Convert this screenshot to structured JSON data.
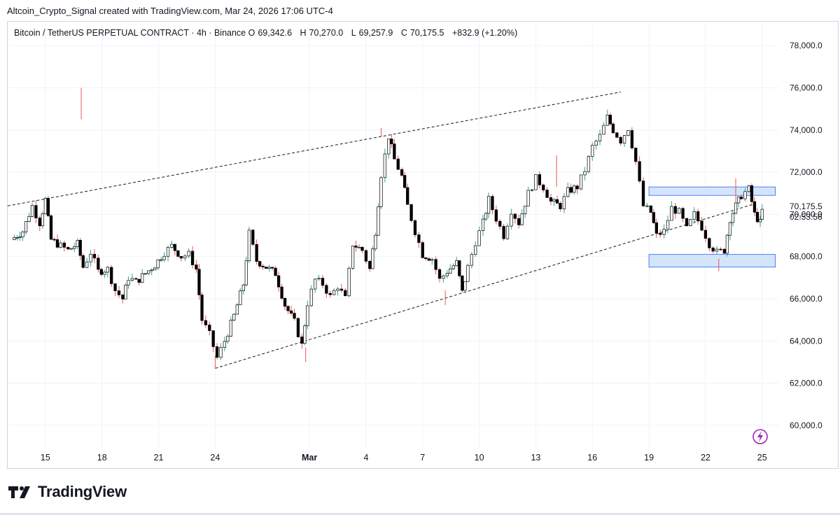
{
  "caption": "Altcoin_Crypto_Signal created with TradingView.com, Mar 24, 2026 17:06 UTC-4",
  "legend": {
    "symbol": "Bitcoin / TetherUS PERPETUAL CONTRACT · 4h · Binance",
    "o_label": "O",
    "o_value": "69,342.6",
    "h_label": "H",
    "h_value": "70,270.0",
    "l_label": "L",
    "l_value": "69,257.9",
    "c_label": "C",
    "c_value": "70,175.5",
    "change": "+832.9 (+1.20%)"
  },
  "price_tag": {
    "price": "70,175.5",
    "countdown": "02:53:56"
  },
  "brand": {
    "name": "TradingView"
  },
  "colors": {
    "up": "#ffffff",
    "down": "#000000",
    "zone_fill": "#cfe2fb",
    "zone_stroke": "#2962ff",
    "wick_up": "#26a69a",
    "wick_down": "#ef5350",
    "bolt": "#9c27b0"
  },
  "chart_data": {
    "type": "candlestick",
    "timeframe": "4h",
    "y_axis": {
      "ticks": [
        "78,000.0",
        "76,000.0",
        "74,000.0",
        "72,000.0",
        "70,000.0",
        "68,000.0",
        "66,000.0",
        "64,000.0",
        "62,000.0",
        "60,000.0"
      ],
      "tick_values": [
        78000,
        76000,
        74000,
        72000,
        70000,
        68000,
        66000,
        64000,
        62000,
        60000
      ],
      "range": [
        59000,
        79100
      ]
    },
    "x_axis": {
      "tick_labels": [
        "15",
        "18",
        "21",
        "24",
        "Mar",
        "4",
        "7",
        "10",
        "13",
        "16",
        "19",
        "22",
        "25"
      ],
      "tick_days": [
        15,
        18,
        21,
        24,
        29,
        32,
        35,
        38,
        41,
        44,
        47,
        50,
        53
      ],
      "range": [
        13.0,
        53.9
      ]
    },
    "close_path": [
      [
        13.2,
        68800
      ],
      [
        13.8,
        69200
      ],
      [
        14.3,
        70400
      ],
      [
        14.7,
        69600
      ],
      [
        15.0,
        70700
      ],
      [
        15.3,
        68800
      ],
      [
        15.8,
        68500
      ],
      [
        16.2,
        68300
      ],
      [
        16.7,
        68600
      ],
      [
        17.0,
        67500
      ],
      [
        17.4,
        68200
      ],
      [
        17.8,
        67300
      ],
      [
        18.3,
        67400
      ],
      [
        18.7,
        66400
      ],
      [
        19.1,
        66000
      ],
      [
        19.4,
        67000
      ],
      [
        19.8,
        66800
      ],
      [
        20.3,
        67200
      ],
      [
        20.8,
        67600
      ],
      [
        21.3,
        68200
      ],
      [
        21.7,
        68500
      ],
      [
        22.2,
        68000
      ],
      [
        22.6,
        68100
      ],
      [
        23.0,
        67400
      ],
      [
        23.3,
        65000
      ],
      [
        23.7,
        64300
      ],
      [
        24.1,
        63200
      ],
      [
        24.5,
        64000
      ],
      [
        25.0,
        65200
      ],
      [
        25.5,
        66700
      ],
      [
        25.8,
        69100
      ],
      [
        26.2,
        67800
      ],
      [
        26.7,
        67500
      ],
      [
        27.2,
        67200
      ],
      [
        27.7,
        65700
      ],
      [
        28.2,
        64900
      ],
      [
        28.6,
        63800
      ],
      [
        28.9,
        65800
      ],
      [
        29.3,
        66900
      ],
      [
        29.7,
        66700
      ],
      [
        30.1,
        66100
      ],
      [
        30.5,
        66600
      ],
      [
        30.9,
        66000
      ],
      [
        31.3,
        68600
      ],
      [
        31.8,
        68300
      ],
      [
        32.2,
        67400
      ],
      [
        32.5,
        69200
      ],
      [
        32.8,
        71900
      ],
      [
        33.2,
        73700
      ],
      [
        33.5,
        72600
      ],
      [
        33.9,
        71800
      ],
      [
        34.2,
        70400
      ],
      [
        34.6,
        69200
      ],
      [
        35.0,
        68100
      ],
      [
        35.5,
        67900
      ],
      [
        35.9,
        66900
      ],
      [
        36.3,
        67300
      ],
      [
        36.8,
        67700
      ],
      [
        37.1,
        66300
      ],
      [
        37.4,
        67500
      ],
      [
        37.8,
        68700
      ],
      [
        38.2,
        69600
      ],
      [
        38.5,
        70700
      ],
      [
        38.9,
        69800
      ],
      [
        39.3,
        69000
      ],
      [
        39.7,
        70200
      ],
      [
        40.1,
        69600
      ],
      [
        40.6,
        71000
      ],
      [
        41.0,
        71700
      ],
      [
        41.4,
        71300
      ],
      [
        41.8,
        70600
      ],
      [
        42.3,
        70400
      ],
      [
        42.7,
        71100
      ],
      [
        43.2,
        71300
      ],
      [
        43.6,
        72100
      ],
      [
        44.0,
        73200
      ],
      [
        44.4,
        73700
      ],
      [
        44.8,
        74600
      ],
      [
        45.1,
        74000
      ],
      [
        45.5,
        73500
      ],
      [
        45.9,
        74100
      ],
      [
        46.3,
        72500
      ],
      [
        46.7,
        70400
      ],
      [
        47.1,
        70100
      ],
      [
        47.4,
        69000
      ],
      [
        47.8,
        69200
      ],
      [
        48.2,
        70300
      ],
      [
        48.6,
        70100
      ],
      [
        49.0,
        69300
      ],
      [
        49.4,
        70000
      ],
      [
        49.8,
        69400
      ],
      [
        50.2,
        68600
      ],
      [
        50.6,
        68200
      ],
      [
        51.0,
        68300
      ],
      [
        51.3,
        69800
      ],
      [
        51.6,
        70400
      ],
      [
        51.9,
        70900
      ],
      [
        52.3,
        71200
      ],
      [
        52.6,
        70000
      ],
      [
        52.9,
        69600
      ],
      [
        53.0,
        70175
      ]
    ],
    "resistance_line": {
      "start": [
        13.0,
        70400
      ],
      "end": [
        45.5,
        75800
      ]
    },
    "support_line": {
      "start": [
        24.0,
        62700
      ],
      "end": [
        52.6,
        70500
      ]
    },
    "zones": [
      {
        "label": "resistance-zone",
        "day_from": 47.0,
        "day_to": 53.7,
        "price_low": 70900,
        "price_high": 71300
      },
      {
        "label": "support-zone",
        "day_from": 47.0,
        "day_to": 53.7,
        "price_low": 67500,
        "price_high": 68100
      }
    ],
    "last_price": 70175.5
  }
}
